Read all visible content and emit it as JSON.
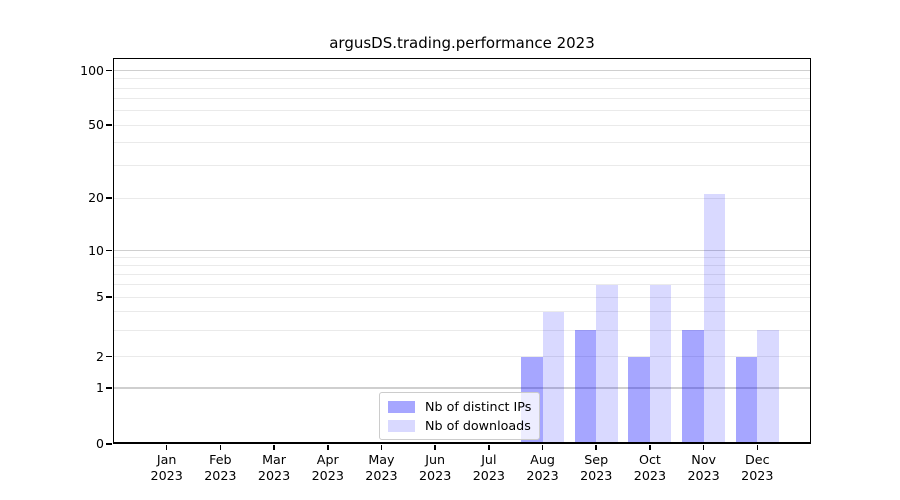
{
  "chart_data": {
    "type": "bar",
    "title": "argusDS.trading.performance 2023",
    "x_axis": {
      "months": [
        "Jan",
        "Feb",
        "Mar",
        "Apr",
        "May",
        "Jun",
        "Jul",
        "Aug",
        "Sep",
        "Oct",
        "Nov",
        "Dec"
      ],
      "year": "2023"
    },
    "y_axis": {
      "scale": "symlog",
      "ticks": [
        0,
        1,
        2,
        5,
        10,
        20,
        50,
        100
      ],
      "major_gridlines": [
        1,
        10,
        100
      ],
      "minor_gridlines": [
        2,
        3,
        4,
        5,
        6,
        7,
        8,
        9,
        20,
        30,
        40,
        50,
        60,
        70,
        80,
        90
      ],
      "ylim": [
        0,
        117
      ],
      "grid": "on"
    },
    "series": [
      {
        "name": "Nb of distinct IPs",
        "color": "rgba(0,0,255,0.35)",
        "values": [
          0,
          0,
          0,
          0,
          0,
          0,
          0,
          2,
          3,
          2,
          3,
          2
        ]
      },
      {
        "name": "Nb of downloads",
        "color": "rgba(0,0,255,0.15)",
        "values": [
          0,
          0,
          0,
          0,
          0,
          0,
          0,
          4,
          6,
          6,
          21,
          3
        ]
      }
    ],
    "legend": {
      "position": "lower center"
    }
  }
}
